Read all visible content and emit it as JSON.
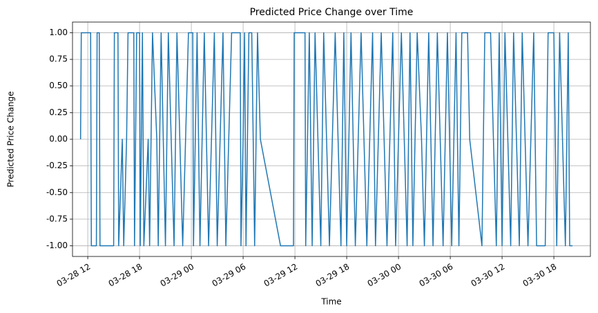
{
  "chart_data": {
    "type": "line",
    "title": "Predicted Price Change over Time",
    "xlabel": "Time",
    "ylabel": "Predicted Price Change",
    "color": "#1f77b4",
    "grid": true,
    "xlim": [
      "03-28 10:14",
      "03-30 22:14"
    ],
    "ylim": [
      -1.1,
      1.1
    ],
    "xticks": [
      "03-28 12",
      "03-28 18",
      "03-29 00",
      "03-29 06",
      "03-29 12",
      "03-29 18",
      "03-30 00",
      "03-30 06",
      "03-30 12",
      "03-30 18"
    ],
    "yticks": [
      {
        "value": -1,
        "label": "-1.00"
      },
      {
        "value": -0.75,
        "label": "-0.75"
      },
      {
        "value": -0.5,
        "label": "-0.50"
      },
      {
        "value": -0.25,
        "label": "-0.25"
      },
      {
        "value": 0,
        "label": "0.00"
      },
      {
        "value": 0.25,
        "label": "0.25"
      },
      {
        "value": 0.5,
        "label": "0.50"
      },
      {
        "value": 0.75,
        "label": "0.75"
      },
      {
        "value": 1,
        "label": "1.00"
      }
    ],
    "x": [
      "03-28 11:10",
      "03-28 11:15",
      "03-28 12:20",
      "03-28 12:25",
      "03-28 13:00",
      "03-28 13:05",
      "03-28 13:20",
      "03-28 13:25",
      "03-28 15:00",
      "03-28 15:05",
      "03-28 15:30",
      "03-28 15:35",
      "03-28 16:00",
      "03-28 16:10",
      "03-28 16:30",
      "03-28 16:40",
      "03-28 17:20",
      "03-28 17:25",
      "03-28 17:40",
      "03-28 18:00",
      "03-28 18:05",
      "03-28 18:20",
      "03-28 18:30",
      "03-28 19:00",
      "03-28 19:10",
      "03-28 19:30",
      "03-28 20:00",
      "03-28 20:10",
      "03-28 20:30",
      "03-28 21:00",
      "03-28 21:20",
      "03-28 22:00",
      "03-28 22:20",
      "03-28 23:00",
      "03-28 23:20",
      "03-28 23:40",
      "03-29 00:10",
      "03-29 00:15",
      "03-29 00:40",
      "03-29 01:00",
      "03-29 01:30",
      "03-29 02:00",
      "03-29 02:40",
      "03-29 03:00",
      "03-29 03:40",
      "03-29 04:00",
      "03-29 04:40",
      "03-29 05:40",
      "03-29 05:45",
      "03-29 06:00",
      "03-29 06:10",
      "03-29 06:20",
      "03-29 06:40",
      "03-29 07:00",
      "03-29 07:20",
      "03-29 07:40",
      "03-29 08:00",
      "03-29 10:20",
      "03-29 11:50",
      "03-29 11:55",
      "03-29 13:10",
      "03-29 13:15",
      "03-29 13:40",
      "03-29 14:00",
      "03-29 14:20",
      "03-29 15:00",
      "03-29 15:20",
      "03-29 16:00",
      "03-29 16:20",
      "03-29 16:40",
      "03-29 17:20",
      "03-29 17:40",
      "03-29 18:00",
      "03-29 18:30",
      "03-29 19:00",
      "03-29 19:20",
      "03-29 19:40",
      "03-29 20:20",
      "03-29 21:00",
      "03-29 21:20",
      "03-29 22:00",
      "03-29 22:20",
      "03-29 22:40",
      "03-29 23:20",
      "03-29 23:40",
      "03-30 00:20",
      "03-30 00:40",
      "03-30 01:00",
      "03-30 01:20",
      "03-30 01:40",
      "03-30 02:10",
      "03-30 02:40",
      "03-30 03:00",
      "03-30 03:30",
      "03-30 04:00",
      "03-30 04:30",
      "03-30 05:10",
      "03-30 05:40",
      "03-30 06:10",
      "03-30 06:40",
      "03-30 07:00",
      "03-30 07:20",
      "03-30 08:00",
      "03-30 08:15",
      "03-30 09:40",
      "03-30 10:00",
      "03-30 10:40",
      "03-30 11:00",
      "03-30 11:20",
      "03-30 11:40",
      "03-30 12:00",
      "03-30 12:20",
      "03-30 13:00",
      "03-30 13:20",
      "03-30 14:00",
      "03-30 14:20",
      "03-30 15:00",
      "03-30 15:40",
      "03-30 16:00",
      "03-30 17:00",
      "03-30 17:20",
      "03-30 18:00",
      "03-30 18:20",
      "03-30 18:40",
      "03-30 19:00",
      "03-30 19:20",
      "03-30 19:40",
      "03-30 19:50",
      "03-30 20:10"
    ],
    "values": [
      0,
      1,
      1,
      -1,
      -1,
      1,
      1,
      -1,
      -1,
      1,
      1,
      -1,
      0,
      -1,
      0,
      1,
      1,
      -1,
      1,
      1,
      -1,
      1,
      -1,
      0,
      -1,
      1,
      0,
      -1,
      1,
      -1,
      1,
      -1,
      1,
      -1,
      0,
      1,
      1,
      -1,
      1,
      -1,
      1,
      -1,
      1,
      -1,
      1,
      -1,
      1,
      1,
      -1,
      0,
      1,
      -1,
      1,
      1,
      -1,
      1,
      0,
      -1,
      -1,
      1,
      1,
      -1,
      1,
      -1,
      1,
      -1,
      1,
      -1,
      0,
      1,
      -1,
      1,
      -1,
      1,
      -1,
      0,
      1,
      -1,
      1,
      -1,
      1,
      0,
      -1,
      1,
      -1,
      1,
      0,
      -1,
      1,
      -1,
      1,
      0,
      -1,
      1,
      -1,
      1,
      -1,
      1,
      -1,
      1,
      -1,
      1,
      1,
      0,
      -1,
      1,
      1,
      0,
      -1,
      1,
      -1,
      1,
      -1,
      1,
      -1,
      1,
      -1,
      1,
      -1,
      -1,
      1,
      1,
      -1,
      1,
      0,
      -1,
      1,
      -1,
      -1
    ]
  }
}
